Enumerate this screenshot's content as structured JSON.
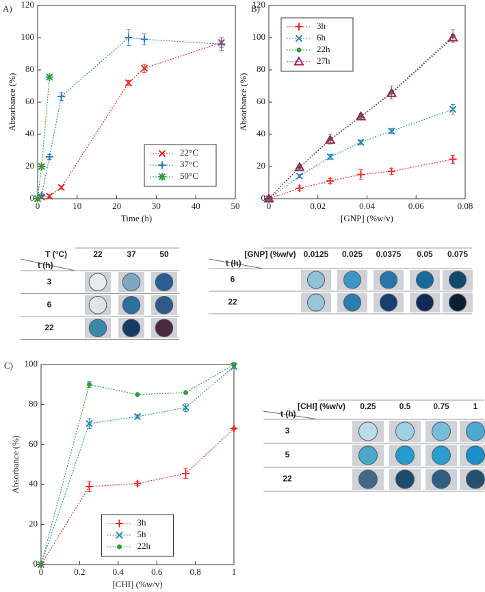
{
  "chart_data": [
    {
      "type": "scatter-line",
      "panel": "A)",
      "xlabel": "Time (h)",
      "ylabel": "Absorbance (%)",
      "xlim": [
        0,
        50
      ],
      "xticks": [
        0,
        10,
        20,
        30,
        40,
        50
      ],
      "ylim": [
        0,
        120
      ],
      "yticks": [
        0,
        20,
        40,
        60,
        80,
        100,
        120
      ],
      "grid": false,
      "legend": "lower right",
      "series": [
        {
          "name": "22°C",
          "color": "#e8272a",
          "marker": "x",
          "x": [
            0,
            1,
            3,
            6,
            23,
            27,
            46.5
          ],
          "values": [
            0,
            1,
            1.5,
            7,
            72,
            81,
            97
          ],
          "errors": [
            0,
            1,
            1,
            1,
            1.5,
            2.5,
            3
          ]
        },
        {
          "name": "37°C",
          "color": "#2a7ab5",
          "marker": "plus",
          "x": [
            0,
            1,
            3,
            6,
            23,
            27,
            46.5
          ],
          "values": [
            0,
            2,
            26,
            63.5,
            100,
            99,
            96
          ],
          "errors": [
            0,
            1,
            1.5,
            2.5,
            5,
            3.5,
            4
          ]
        },
        {
          "name": "50°C",
          "color": "#2e9c3a",
          "marker": "star",
          "x": [
            0,
            1,
            3
          ],
          "values": [
            0,
            20,
            75.5
          ],
          "errors": [
            0,
            1,
            1
          ]
        }
      ]
    },
    {
      "type": "scatter-line",
      "panel": "B)",
      "xlabel": "[GNP] (%w/v)",
      "ylabel": "Absorbance (%)",
      "xlim": [
        0,
        0.08
      ],
      "xticks": [
        0,
        0.02,
        0.04,
        0.06,
        0.08
      ],
      "ylim": [
        0,
        120
      ],
      "yticks": [
        0,
        20,
        40,
        60,
        80,
        100,
        120
      ],
      "grid": false,
      "legend": "upper left",
      "series": [
        {
          "name": "3h",
          "color": "#e8272a",
          "marker": "plus",
          "x": [
            0,
            0.0125,
            0.025,
            0.0375,
            0.05,
            0.075
          ],
          "values": [
            0,
            6.5,
            11,
            15,
            17,
            24.5
          ],
          "errors": [
            0,
            1.5,
            1.5,
            3,
            2,
            2.5
          ]
        },
        {
          "name": "6h",
          "color": "#2a8ab5",
          "marker": "x",
          "x": [
            0,
            0.0125,
            0.025,
            0.0375,
            0.05,
            0.075
          ],
          "values": [
            0,
            14,
            26,
            35,
            42,
            55.5
          ],
          "errors": [
            0,
            1,
            1.5,
            1.5,
            1.5,
            3
          ]
        },
        {
          "name": "22h",
          "color": "#2e9c3a",
          "marker": "dot",
          "x": [
            0,
            0.0125,
            0.025,
            0.0375,
            0.05,
            0.075
          ],
          "values": [
            0,
            19.5,
            37,
            51,
            66,
            101
          ],
          "errors": [
            0,
            2,
            3,
            2,
            4,
            4
          ]
        },
        {
          "name": "27h",
          "color": "#a3195b",
          "marker": "triangle",
          "x": [
            0,
            0.0125,
            0.025,
            0.0375,
            0.05,
            0.075
          ],
          "values": [
            0,
            19.5,
            36.5,
            51,
            65.5,
            100
          ],
          "errors": [
            0,
            0,
            0,
            0,
            0,
            0
          ]
        }
      ]
    },
    {
      "type": "scatter-line",
      "panel": "C)",
      "xlabel": "[CHI] (%w/v)",
      "ylabel": "Absorbance (%)",
      "xlim": [
        0,
        1
      ],
      "xticks": [
        0,
        0.2,
        0.4,
        0.6,
        0.8,
        1
      ],
      "ylim": [
        0,
        100
      ],
      "yticks": [
        0,
        20,
        40,
        60,
        80,
        100
      ],
      "grid": false,
      "legend": "lower center",
      "series": [
        {
          "name": "3h",
          "color": "#e8272a",
          "marker": "plus",
          "x": [
            0,
            0.25,
            0.5,
            0.75,
            1
          ],
          "values": [
            0,
            39,
            40.5,
            45.5,
            68
          ],
          "errors": [
            0,
            2.5,
            1,
            2.5,
            0.5
          ]
        },
        {
          "name": "5h",
          "color": "#2a8ab5",
          "marker": "x",
          "x": [
            0,
            0.25,
            0.5,
            0.75,
            1
          ],
          "values": [
            0,
            70.5,
            74,
            78.5,
            99
          ],
          "errors": [
            0,
            2.5,
            1,
            2,
            1
          ]
        },
        {
          "name": "22h",
          "color": "#2e9c3a",
          "marker": "dot",
          "x": [
            0,
            0.25,
            0.5,
            0.75,
            1
          ],
          "values": [
            0,
            90,
            85,
            86,
            100
          ],
          "errors": [
            0,
            1.5,
            0.5,
            0.5,
            1
          ]
        }
      ]
    }
  ],
  "tables": [
    {
      "corner_header": "T (°C)",
      "row_header": "t (h)",
      "columns": [
        "22",
        "37",
        "50"
      ],
      "rows": [
        "3",
        "6",
        "22"
      ]
    },
    {
      "corner_header": "[GNP] (%w/v)",
      "row_header": "t (h)",
      "columns": [
        "0.0125",
        "0.025",
        "0.0375",
        "0.05",
        "0.075"
      ],
      "rows": [
        "6",
        "22"
      ]
    },
    {
      "corner_header": "[CHI] (%w/v)",
      "row_header": "t (h)",
      "columns": [
        "0.25",
        "0.5",
        "0.75",
        "1"
      ],
      "rows": [
        "3",
        "5",
        "22"
      ]
    }
  ]
}
